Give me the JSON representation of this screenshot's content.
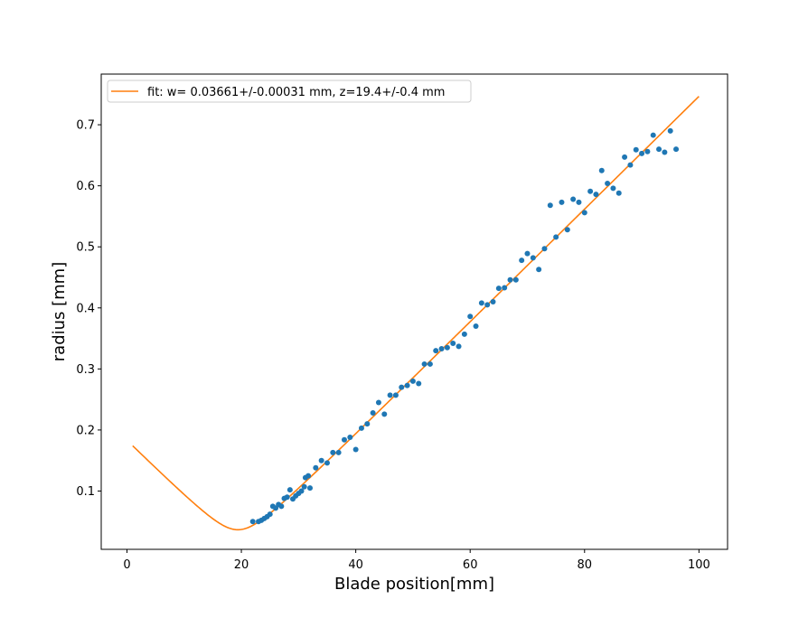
{
  "chart_data": {
    "type": "scatter",
    "title": "",
    "xlabel": "Blade position[mm]",
    "ylabel": "radius [mm]",
    "xlim": [
      -4.5,
      105
    ],
    "ylim": [
      0.0045,
      0.783
    ],
    "xticks": [
      0,
      20,
      40,
      60,
      80,
      100
    ],
    "yticks": [
      0.1,
      0.2,
      0.3,
      0.4,
      0.5,
      0.6,
      0.7
    ],
    "grid": false,
    "legend_position": "top-left",
    "series": [
      {
        "name": "fit: w= 0.03661+/-0.00031 mm, z=19.4+/-0.4 mm",
        "kind": "line",
        "color": "#ff7f0e",
        "fit_params": {
          "w": 0.03661,
          "z": 19.4
        },
        "x_range": [
          1,
          100
        ]
      },
      {
        "name": "",
        "kind": "scatter",
        "color": "#1f77b4",
        "points": [
          [
            22.0,
            0.05
          ],
          [
            23.0,
            0.05
          ],
          [
            23.5,
            0.052
          ],
          [
            24.0,
            0.055
          ],
          [
            24.5,
            0.058
          ],
          [
            25.0,
            0.062
          ],
          [
            25.5,
            0.075
          ],
          [
            26.0,
            0.072
          ],
          [
            26.5,
            0.078
          ],
          [
            27.0,
            0.075
          ],
          [
            27.5,
            0.088
          ],
          [
            28.0,
            0.09
          ],
          [
            28.5,
            0.102
          ],
          [
            29.0,
            0.087
          ],
          [
            29.5,
            0.092
          ],
          [
            30.0,
            0.096
          ],
          [
            30.5,
            0.1
          ],
          [
            31.0,
            0.107
          ],
          [
            31.2,
            0.122
          ],
          [
            31.7,
            0.125
          ],
          [
            32.0,
            0.105
          ],
          [
            33.0,
            0.138
          ],
          [
            34.0,
            0.15
          ],
          [
            35.0,
            0.146
          ],
          [
            36.0,
            0.163
          ],
          [
            37.0,
            0.163
          ],
          [
            38.0,
            0.184
          ],
          [
            39.0,
            0.188
          ],
          [
            40.0,
            0.168
          ],
          [
            41.0,
            0.203
          ],
          [
            42.0,
            0.21
          ],
          [
            43.0,
            0.228
          ],
          [
            44.0,
            0.245
          ],
          [
            45.0,
            0.226
          ],
          [
            46.0,
            0.257
          ],
          [
            47.0,
            0.257
          ],
          [
            48.0,
            0.27
          ],
          [
            49.0,
            0.273
          ],
          [
            50.0,
            0.28
          ],
          [
            51.0,
            0.276
          ],
          [
            52.0,
            0.308
          ],
          [
            53.0,
            0.308
          ],
          [
            54.0,
            0.33
          ],
          [
            55.0,
            0.333
          ],
          [
            56.0,
            0.335
          ],
          [
            57.0,
            0.342
          ],
          [
            58.0,
            0.337
          ],
          [
            59.0,
            0.357
          ],
          [
            60.0,
            0.386
          ],
          [
            61.0,
            0.37
          ],
          [
            62.0,
            0.408
          ],
          [
            63.0,
            0.405
          ],
          [
            64.0,
            0.41
          ],
          [
            65.0,
            0.432
          ],
          [
            66.0,
            0.433
          ],
          [
            67.0,
            0.446
          ],
          [
            68.0,
            0.446
          ],
          [
            69.0,
            0.478
          ],
          [
            70.0,
            0.489
          ],
          [
            71.0,
            0.482
          ],
          [
            72.0,
            0.463
          ],
          [
            73.0,
            0.497
          ],
          [
            74.0,
            0.568
          ],
          [
            75.0,
            0.516
          ],
          [
            76.0,
            0.573
          ],
          [
            77.0,
            0.528
          ],
          [
            78.0,
            0.578
          ],
          [
            79.0,
            0.573
          ],
          [
            80.0,
            0.556
          ],
          [
            81.0,
            0.591
          ],
          [
            82.0,
            0.586
          ],
          [
            83.0,
            0.625
          ],
          [
            84.0,
            0.604
          ],
          [
            85.0,
            0.596
          ],
          [
            86.0,
            0.588
          ],
          [
            87.0,
            0.647
          ],
          [
            88.0,
            0.634
          ],
          [
            89.0,
            0.659
          ],
          [
            90.0,
            0.653
          ],
          [
            91.0,
            0.656
          ],
          [
            92.0,
            0.683
          ],
          [
            93.0,
            0.66
          ],
          [
            94.0,
            0.655
          ],
          [
            95.0,
            0.69
          ],
          [
            96.0,
            0.66
          ]
        ]
      }
    ]
  }
}
